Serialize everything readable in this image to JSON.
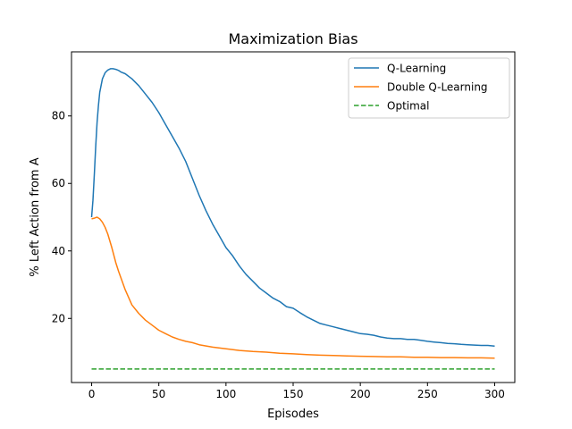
{
  "chart_data": {
    "type": "line",
    "title": "Maximization Bias",
    "xlabel": "Episodes",
    "ylabel": "% Left Action from A",
    "xlim": [
      -15,
      315
    ],
    "ylim": [
      1,
      99
    ],
    "x_ticks": [
      0,
      50,
      100,
      150,
      200,
      250,
      300
    ],
    "y_ticks": [
      20,
      40,
      60,
      80
    ],
    "grid": false,
    "legend_position": "top-right",
    "series": [
      {
        "name": "Q-Learning",
        "color": "#1f77b4",
        "style": "solid",
        "x": [
          0,
          1,
          2,
          3,
          4,
          5,
          6,
          8,
          10,
          12,
          14,
          16,
          18,
          20,
          22,
          25,
          30,
          35,
          40,
          45,
          50,
          55,
          60,
          65,
          70,
          75,
          80,
          85,
          90,
          95,
          100,
          105,
          110,
          115,
          120,
          125,
          130,
          135,
          140,
          145,
          150,
          155,
          160,
          165,
          170,
          175,
          180,
          185,
          190,
          195,
          200,
          205,
          210,
          215,
          220,
          225,
          230,
          235,
          240,
          245,
          250,
          255,
          260,
          265,
          270,
          275,
          280,
          285,
          290,
          295,
          300
        ],
        "values": [
          50,
          55,
          63,
          71,
          78,
          83,
          87,
          91,
          92.8,
          93.6,
          94,
          94,
          93.8,
          93.5,
          93,
          92.5,
          91,
          89,
          86.5,
          84,
          81,
          77.5,
          74,
          70.5,
          66.5,
          61.5,
          56.5,
          52,
          48,
          44.5,
          41,
          38.5,
          35.5,
          33,
          31,
          29,
          27.5,
          26,
          25,
          23.5,
          23,
          21.7,
          20.5,
          19.5,
          18.5,
          18,
          17.5,
          17,
          16.5,
          16,
          15.5,
          15.3,
          15,
          14.5,
          14.2,
          14,
          14,
          13.8,
          13.8,
          13.5,
          13.2,
          13,
          12.8,
          12.6,
          12.5,
          12.3,
          12.2,
          12.1,
          12,
          12,
          11.8
        ]
      },
      {
        "name": "Double Q-Learning",
        "color": "#ff7f0e",
        "style": "solid",
        "x": [
          0,
          2,
          4,
          6,
          8,
          10,
          12,
          15,
          18,
          20,
          25,
          30,
          35,
          40,
          45,
          50,
          55,
          60,
          65,
          70,
          75,
          80,
          90,
          100,
          110,
          120,
          130,
          140,
          150,
          160,
          170,
          180,
          190,
          200,
          210,
          220,
          230,
          240,
          250,
          260,
          270,
          280,
          290,
          300
        ],
        "values": [
          49.5,
          49.7,
          50,
          49.5,
          48.5,
          47,
          45,
          41,
          36.5,
          34,
          28.5,
          24,
          21.5,
          19.5,
          18,
          16.5,
          15.5,
          14.5,
          13.8,
          13.2,
          12.8,
          12.2,
          11.5,
          11,
          10.5,
          10.2,
          10,
          9.7,
          9.5,
          9.3,
          9.1,
          9,
          8.9,
          8.8,
          8.7,
          8.6,
          8.6,
          8.5,
          8.5,
          8.4,
          8.4,
          8.3,
          8.3,
          8.2
        ]
      },
      {
        "name": "Optimal",
        "color": "#2ca02c",
        "style": "dashed",
        "x": [
          0,
          300
        ],
        "values": [
          5,
          5
        ]
      }
    ]
  }
}
